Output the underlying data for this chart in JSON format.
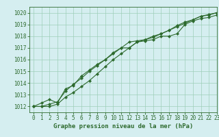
{
  "xlabel": "Graphe pression niveau de la mer (hPa)",
  "ylim": [
    1011.5,
    1020.5
  ],
  "xlim": [
    -0.5,
    23
  ],
  "yticks": [
    1012,
    1013,
    1014,
    1015,
    1016,
    1017,
    1018,
    1019,
    1020
  ],
  "xticks": [
    0,
    1,
    2,
    3,
    4,
    5,
    6,
    7,
    8,
    9,
    10,
    11,
    12,
    13,
    14,
    15,
    16,
    17,
    18,
    19,
    20,
    21,
    22,
    23
  ],
  "bg_color": "#d5eef0",
  "grid_color": "#9ecfb8",
  "line_color": "#2d6a2d",
  "line1": [
    1012.0,
    1012.0,
    1012.2,
    1012.4,
    1013.3,
    1013.9,
    1014.4,
    1015.0,
    1015.5,
    1016.0,
    1016.5,
    1017.0,
    1017.0,
    1017.5,
    1017.6,
    1017.7,
    1018.0,
    1018.0,
    1018.2,
    1019.0,
    1019.3,
    1019.5,
    1019.6,
    1019.8
  ],
  "line2": [
    1012.0,
    1012.3,
    1012.6,
    1012.3,
    1013.5,
    1013.8,
    1014.6,
    1015.1,
    1015.6,
    1016.0,
    1016.6,
    1017.0,
    1017.5,
    1017.6,
    1017.7,
    1018.0,
    1018.2,
    1018.5,
    1018.8,
    1019.1,
    1019.4,
    1019.7,
    1019.8,
    1020.0
  ],
  "line3": [
    1012.0,
    1012.0,
    1012.0,
    1012.2,
    1012.8,
    1013.2,
    1013.7,
    1014.2,
    1014.8,
    1015.4,
    1016.0,
    1016.5,
    1017.0,
    1017.5,
    1017.7,
    1017.9,
    1018.2,
    1018.5,
    1018.9,
    1019.2,
    1019.4,
    1019.7,
    1019.85,
    1020.0
  ],
  "marker": "D",
  "marker_size": 2.2,
  "linewidth": 0.8,
  "tick_fontsize": 5.5,
  "label_fontsize": 6.5
}
